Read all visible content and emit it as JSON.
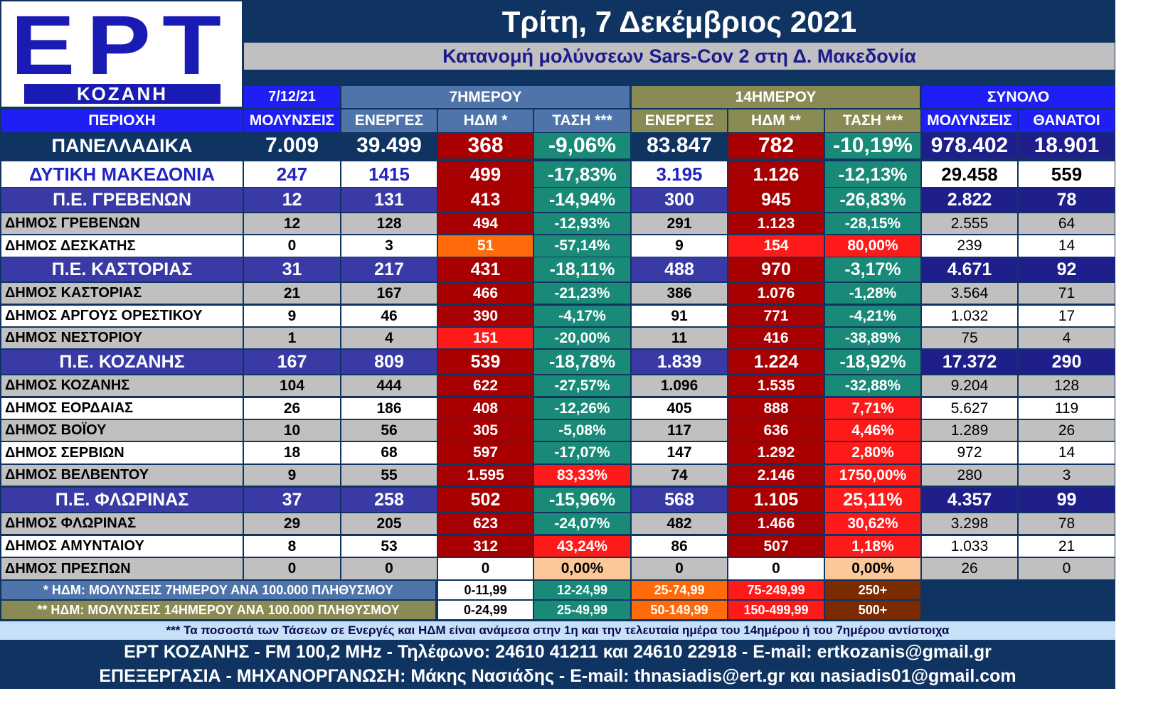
{
  "logo": {
    "brand": "ΕΡΤ",
    "city": "ΚΟΖΑΝΗ"
  },
  "title": "Τρίτη, 7 Δεκέμβριος 2021",
  "subtitle": "Κατανομή μολύνσεων Sars-Cov 2 στη Δ. Μακεδονία",
  "groups": {
    "date": "7/12/21",
    "week": "7ΗΜΕΡΟΥ",
    "fortnight": "14ΗΜΕΡΟΥ",
    "total": "ΣΥΝΟΛΟ"
  },
  "columns": [
    "ΠΕΡΙΟΧΗ",
    "ΜΟΛΥΝΣΕΙΣ",
    "ΕΝΕΡΓΕΣ",
    "ΗΔΜ *",
    "ΤΑΣΗ ***",
    "ΕΝΕΡΓΕΣ",
    "ΗΔΜ **",
    "ΤΑΣΗ ***",
    "ΜΟΛΥΝΣΕΙΣ",
    "ΘΑΝΑΤΟΙ"
  ],
  "colors": {
    "background": "#0f3462",
    "national_label": "#0f3462",
    "region_label": "#2323c6",
    "pe_label": "#3a3aa6",
    "municipality_gray": "#c0c0c0",
    "white": "#ffffff",
    "week_header": "#4f74a9",
    "fortnight_header": "#8a8a55",
    "total_header": "#1f1ff5",
    "total_dark": "#1f1f8c",
    "teal": "#1a8a78",
    "dark_red": "#a80000",
    "bright_red": "#ff1a1a",
    "orange": "#ff6a0a",
    "peach": "#fcc89a",
    "brown": "#7a2c00"
  },
  "rows": [
    {
      "level": "national",
      "name": "ΠΑΝΕΛΛΑΔΙΚΑ",
      "daily": "7.009",
      "active7": "39.499",
      "idm7": "368",
      "trend7": "-9,06%",
      "active14": "83.847",
      "idm14": "782",
      "trend14": "-10,19%",
      "total": "978.402",
      "deaths": "18.901",
      "c_idm7": "dark_red",
      "c_trend7": "teal",
      "c_idm14": "dark_red",
      "c_trend14": "teal"
    },
    {
      "level": "region",
      "name": "ΔΥΤΙΚΗ ΜΑΚΕΔΟΝΙΑ",
      "daily": "247",
      "active7": "1415",
      "idm7": "499",
      "trend7": "-17,83%",
      "active14": "3.195",
      "idm14": "1.126",
      "trend14": "-12,13%",
      "total": "29.458",
      "deaths": "559",
      "c_idm7": "dark_red",
      "c_trend7": "teal",
      "c_idm14": "dark_red",
      "c_trend14": "teal"
    },
    {
      "level": "pe",
      "name": "Π.Ε. ΓΡΕΒΕΝΩΝ",
      "daily": "12",
      "active7": "131",
      "idm7": "413",
      "trend7": "-14,94%",
      "active14": "300",
      "idm14": "945",
      "trend14": "-26,83%",
      "total": "2.822",
      "deaths": "78",
      "c_idm7": "dark_red",
      "c_trend7": "teal",
      "c_idm14": "dark_red",
      "c_trend14": "teal"
    },
    {
      "level": "mun_gray",
      "name": "ΔΗΜΟΣ ΓΡΕΒΕΝΩΝ",
      "daily": "12",
      "active7": "128",
      "idm7": "494",
      "trend7": "-12,93%",
      "active14": "291",
      "idm14": "1.123",
      "trend14": "-28,15%",
      "total": "2.555",
      "deaths": "64",
      "c_idm7": "dark_red",
      "c_trend7": "teal",
      "c_idm14": "dark_red",
      "c_trend14": "teal"
    },
    {
      "level": "mun_white",
      "name": "ΔΗΜΟΣ ΔΕΣΚΑΤΗΣ",
      "daily": "0",
      "active7": "3",
      "idm7": "51",
      "trend7": "-57,14%",
      "active14": "9",
      "idm14": "154",
      "trend14": "80,00%",
      "total": "239",
      "deaths": "14",
      "c_idm7": "orange",
      "c_trend7": "teal",
      "c_idm14": "bright_red",
      "c_trend14": "bright_red"
    },
    {
      "level": "pe",
      "name": "Π.Ε. ΚΑΣΤΟΡΙΑΣ",
      "daily": "31",
      "active7": "217",
      "idm7": "431",
      "trend7": "-18,11%",
      "active14": "488",
      "idm14": "970",
      "trend14": "-3,17%",
      "total": "4.671",
      "deaths": "92",
      "c_idm7": "dark_red",
      "c_trend7": "teal",
      "c_idm14": "dark_red",
      "c_trend14": "teal"
    },
    {
      "level": "mun_gray",
      "name": "ΔΗΜΟΣ ΚΑΣΤΟΡΙΑΣ",
      "daily": "21",
      "active7": "167",
      "idm7": "466",
      "trend7": "-21,23%",
      "active14": "386",
      "idm14": "1.076",
      "trend14": "-1,28%",
      "total": "3.564",
      "deaths": "71",
      "c_idm7": "dark_red",
      "c_trend7": "teal",
      "c_idm14": "dark_red",
      "c_trend14": "teal"
    },
    {
      "level": "mun_white",
      "name": "ΔΗΜΟΣ ΑΡΓΟΥΣ ΟΡΕΣΤΙΚΟΥ",
      "daily": "9",
      "active7": "46",
      "idm7": "390",
      "trend7": "-4,17%",
      "active14": "91",
      "idm14": "771",
      "trend14": "-4,21%",
      "total": "1.032",
      "deaths": "17",
      "c_idm7": "dark_red",
      "c_trend7": "teal",
      "c_idm14": "dark_red",
      "c_trend14": "teal"
    },
    {
      "level": "mun_gray",
      "name": "ΔΗΜΟΣ ΝΕΣΤΟΡΙΟΥ",
      "daily": "1",
      "active7": "4",
      "idm7": "151",
      "trend7": "-20,00%",
      "active14": "11",
      "idm14": "416",
      "trend14": "-38,89%",
      "total": "75",
      "deaths": "4",
      "c_idm7": "bright_red",
      "c_trend7": "teal",
      "c_idm14": "dark_red",
      "c_trend14": "teal"
    },
    {
      "level": "pe",
      "name": "Π.Ε. ΚΟΖΑΝΗΣ",
      "daily": "167",
      "active7": "809",
      "idm7": "539",
      "trend7": "-18,78%",
      "active14": "1.839",
      "idm14": "1.224",
      "trend14": "-18,92%",
      "total": "17.372",
      "deaths": "290",
      "c_idm7": "dark_red",
      "c_trend7": "teal",
      "c_idm14": "dark_red",
      "c_trend14": "teal"
    },
    {
      "level": "mun_gray",
      "name": "ΔΗΜΟΣ ΚΟΖΑΝΗΣ",
      "daily": "104",
      "active7": "444",
      "idm7": "622",
      "trend7": "-27,57%",
      "active14": "1.096",
      "idm14": "1.535",
      "trend14": "-32,88%",
      "total": "9.204",
      "deaths": "128",
      "c_idm7": "dark_red",
      "c_trend7": "teal",
      "c_idm14": "dark_red",
      "c_trend14": "teal"
    },
    {
      "level": "mun_white",
      "name": "ΔΗΜΟΣ ΕΟΡΔΑΙΑΣ",
      "daily": "26",
      "active7": "186",
      "idm7": "408",
      "trend7": "-12,26%",
      "active14": "405",
      "idm14": "888",
      "trend14": "7,71%",
      "total": "5.627",
      "deaths": "119",
      "c_idm7": "dark_red",
      "c_trend7": "teal",
      "c_idm14": "dark_red",
      "c_trend14": "bright_red"
    },
    {
      "level": "mun_gray",
      "name": "ΔΗΜΟΣ ΒΟΪΟΥ",
      "daily": "10",
      "active7": "56",
      "idm7": "305",
      "trend7": "-5,08%",
      "active14": "117",
      "idm14": "636",
      "trend14": "4,46%",
      "total": "1.289",
      "deaths": "26",
      "c_idm7": "dark_red",
      "c_trend7": "teal",
      "c_idm14": "dark_red",
      "c_trend14": "bright_red"
    },
    {
      "level": "mun_white",
      "name": "ΔΗΜΟΣ ΣΕΡΒΙΩΝ",
      "daily": "18",
      "active7": "68",
      "idm7": "597",
      "trend7": "-17,07%",
      "active14": "147",
      "idm14": "1.292",
      "trend14": "2,80%",
      "total": "972",
      "deaths": "14",
      "c_idm7": "dark_red",
      "c_trend7": "teal",
      "c_idm14": "dark_red",
      "c_trend14": "bright_red"
    },
    {
      "level": "mun_gray",
      "name": "ΔΗΜΟΣ ΒΕΛΒΕΝΤΟΥ",
      "daily": "9",
      "active7": "55",
      "idm7": "1.595",
      "trend7": "83,33%",
      "active14": "74",
      "idm14": "2.146",
      "trend14": "1750,00%",
      "total": "280",
      "deaths": "3",
      "c_idm7": "dark_red",
      "c_trend7": "bright_red",
      "c_idm14": "dark_red",
      "c_trend14": "bright_red"
    },
    {
      "level": "pe",
      "name": "Π.Ε. ΦΛΩΡΙΝΑΣ",
      "daily": "37",
      "active7": "258",
      "idm7": "502",
      "trend7": "-15,96%",
      "active14": "568",
      "idm14": "1.105",
      "trend14": "25,11%",
      "total": "4.357",
      "deaths": "99",
      "c_idm7": "dark_red",
      "c_trend7": "teal",
      "c_idm14": "dark_red",
      "c_trend14": "bright_red"
    },
    {
      "level": "mun_gray",
      "name": "ΔΗΜΟΣ ΦΛΩΡΙΝΑΣ",
      "daily": "29",
      "active7": "205",
      "idm7": "623",
      "trend7": "-24,07%",
      "active14": "482",
      "idm14": "1.466",
      "trend14": "30,62%",
      "total": "3.298",
      "deaths": "78",
      "c_idm7": "dark_red",
      "c_trend7": "teal",
      "c_idm14": "dark_red",
      "c_trend14": "bright_red"
    },
    {
      "level": "mun_white",
      "name": "ΔΗΜΟΣ ΑΜΥΝΤΑΙΟΥ",
      "daily": "8",
      "active7": "53",
      "idm7": "312",
      "trend7": "43,24%",
      "active14": "86",
      "idm14": "507",
      "trend14": "1,18%",
      "total": "1.033",
      "deaths": "21",
      "c_idm7": "dark_red",
      "c_trend7": "bright_red",
      "c_idm14": "dark_red",
      "c_trend14": "bright_red"
    },
    {
      "level": "mun_gray",
      "name": "ΔΗΜΟΣ ΠΡΕΣΠΩΝ",
      "daily": "0",
      "active7": "0",
      "idm7": "0",
      "trend7": "0,00%",
      "active14": "0",
      "idm14": "0",
      "trend14": "0,00%",
      "total": "26",
      "deaths": "0",
      "c_idm7": "white",
      "c_trend7": "peach",
      "c_idm14": "white",
      "c_trend14": "peach"
    }
  ],
  "legend": [
    {
      "label": "* ΗΔΜ: ΜΟΛΥΝΣΕΙΣ 7ΗΜΕΡΟΥ ΑΝΑ 100.000 ΠΛΗΘΥΣΜΟΥ",
      "label_color": "week_header",
      "ranges": [
        "0-11,99",
        "12-24,99",
        "25-74,99",
        "75-249,99",
        "250+"
      ]
    },
    {
      "label": "** ΗΔΜ: ΜΟΛΥΝΣΕΙΣ 14ΗΜΕΡΟΥ ΑΝΑ 100.000 ΠΛΗΘΥΣΜΟΥ",
      "label_color": "fortnight_header",
      "ranges": [
        "0-24,99",
        "25-49,99",
        "50-149,99",
        "150-499,99",
        "500+"
      ]
    }
  ],
  "legend_colors": [
    "white",
    "teal",
    "orange",
    "bright_red",
    "brown"
  ],
  "footnote": "*** Τα ποσοστά των Τάσεων σε Ενεργές και ΗΔΜ είναι ανάμεσα στην 1η και την τελευταία ημέρα του 14ημέρου ή του 7ημέρου αντίστοιχα",
  "footer": {
    "line1": "ΕΡΤ ΚΟΖΑΝΗΣ - FM 100,2 MHz - Τηλέφωνο:  24610 41211 και 24610 22918 - E-mail: ertkozanis@gmail.gr",
    "line2": "ΕΠΕΞΕΡΓΑΣΙΑ  -  ΜΗΧΑΝΟΡΓΑΝΩΣΗ: Μάκης Νασιάδης  -    E-mail: thnasiadis@ert.gr και nasiadis01@gmail.com"
  }
}
